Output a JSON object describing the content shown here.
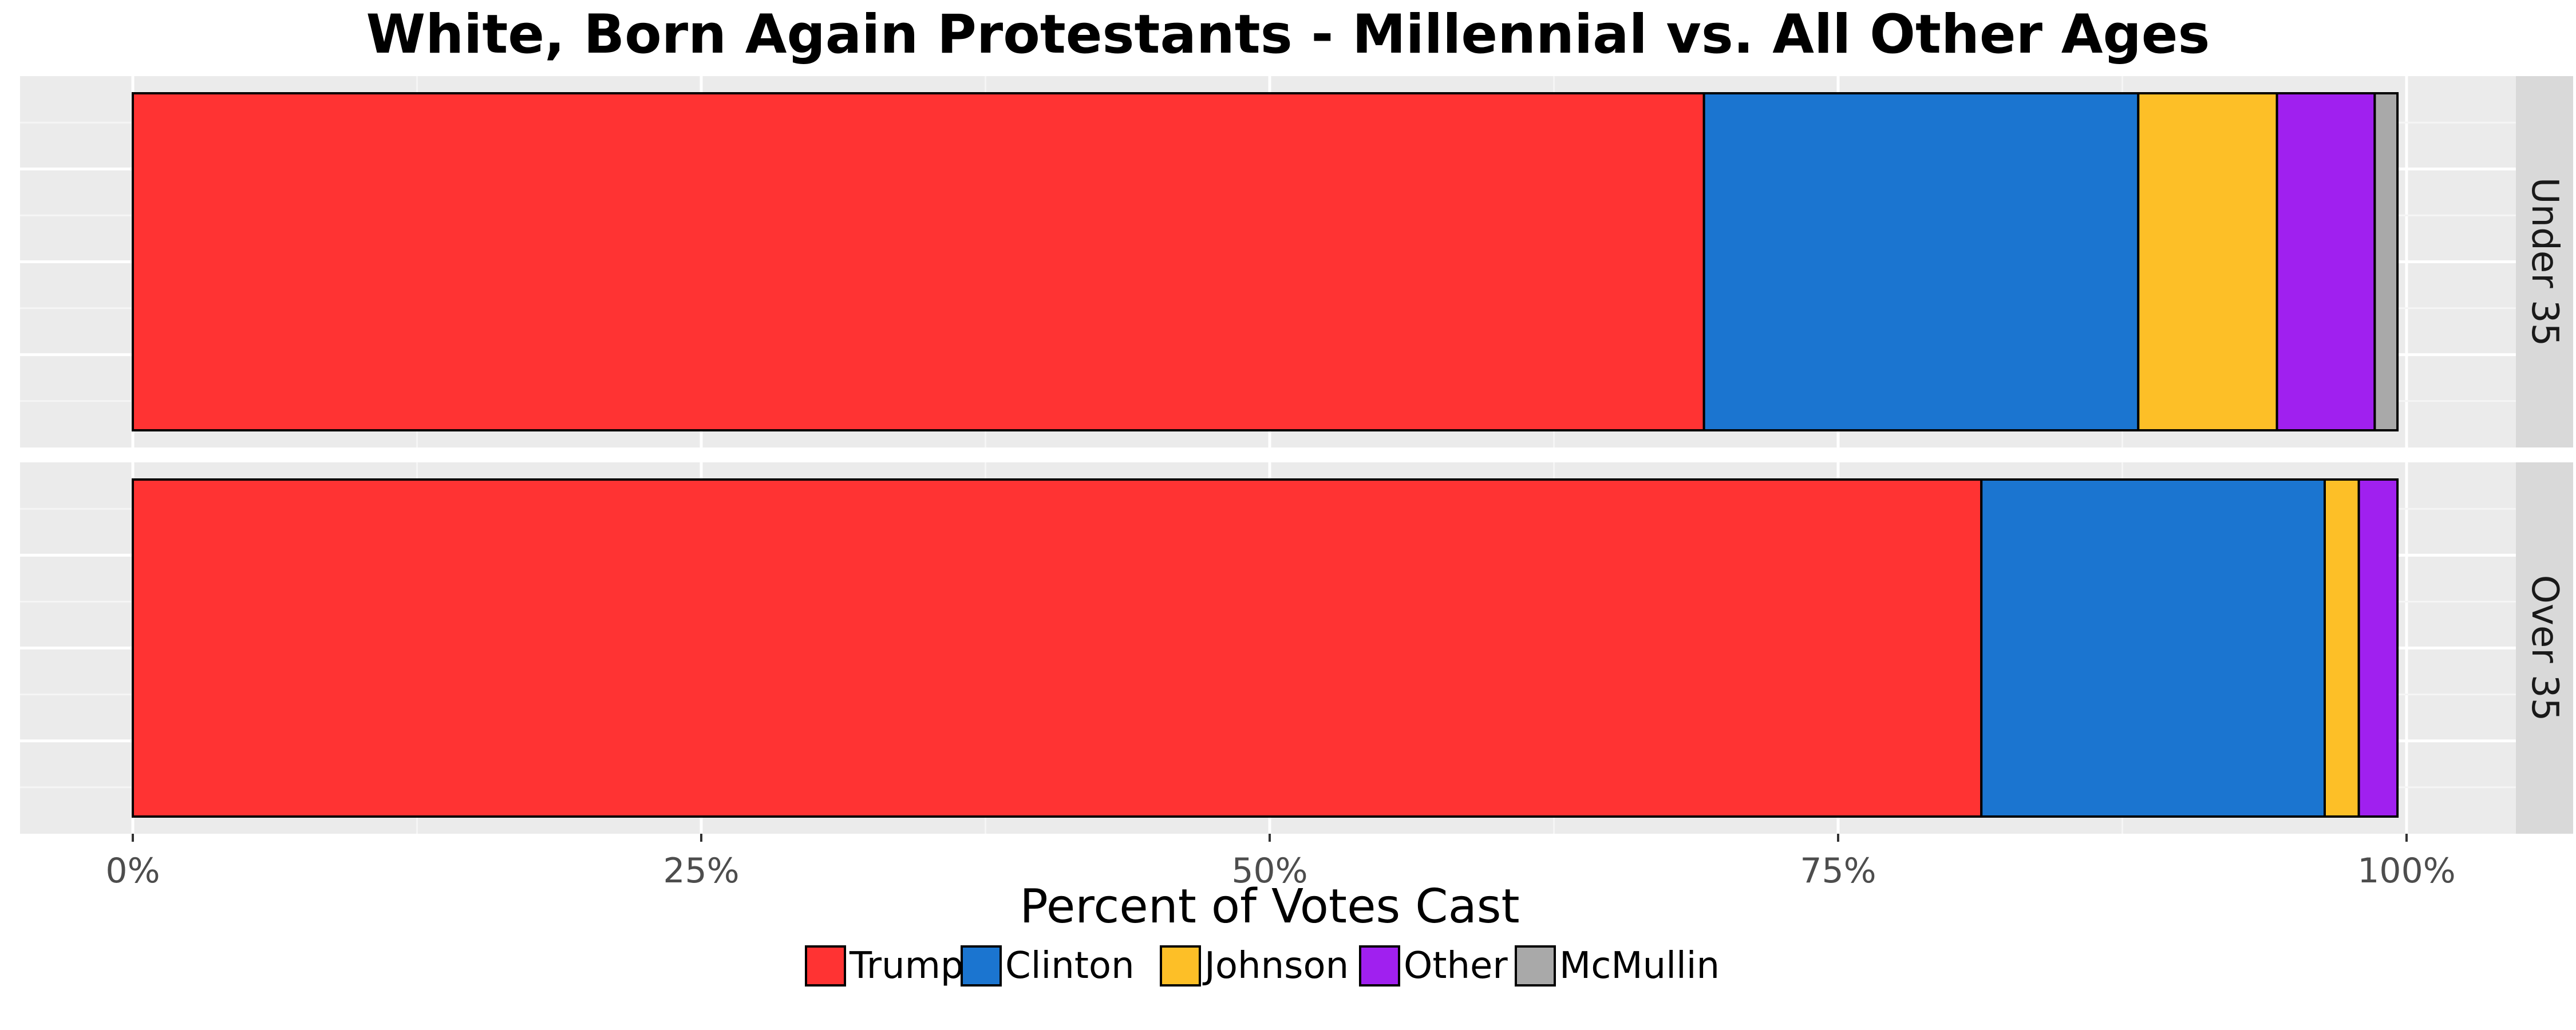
{
  "chart_data": {
    "type": "bar",
    "orientation": "horizontal-stacked",
    "title": "White, Born Again Protestants - Millennial vs. All Other Ages",
    "xlabel": "Percent of Votes Cast",
    "ylabel": "",
    "xlim": [
      0,
      1
    ],
    "x_ticks": [
      "0%",
      "25%",
      "50%",
      "75%",
      "100%"
    ],
    "x_tick_values": [
      0,
      0.25,
      0.5,
      0.75,
      1.0
    ],
    "grid": true,
    "legend_position": "bottom",
    "facets": [
      "Under 35",
      "Over 35"
    ],
    "series": [
      {
        "name": "Trump",
        "color": "#FF3333",
        "values": [
          0.691,
          0.813
        ]
      },
      {
        "name": "Clinton",
        "color": "#1B75D0",
        "values": [
          0.191,
          0.151
        ]
      },
      {
        "name": "Johnson",
        "color": "#FDBF27",
        "values": [
          0.061,
          0.015
        ]
      },
      {
        "name": "Other",
        "color": "#A020EF",
        "values": [
          0.043,
          0.017
        ]
      },
      {
        "name": "McMullin",
        "color": "#A9A9A9",
        "values": [
          0.01,
          0.0
        ]
      }
    ]
  }
}
